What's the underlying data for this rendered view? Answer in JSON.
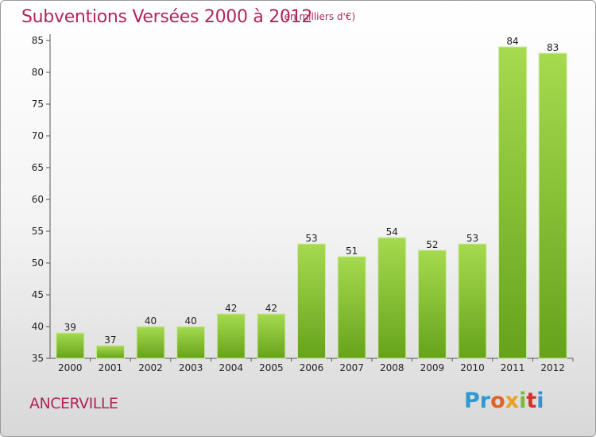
{
  "header": {
    "title": "Subventions Versées 2000 à 2012",
    "subtitle": "(en milliers d'€)"
  },
  "footer": {
    "commune": "ANCERVILLE",
    "logo_text": "Proxiti",
    "logo_letters": [
      "Pr",
      "o",
      "x",
      "i",
      "t",
      "i"
    ]
  },
  "chart_data": {
    "type": "bar",
    "title": "Subventions Versées 2000 à 2012",
    "subtitle": "(en milliers d'€)",
    "xlabel": "",
    "ylabel": "",
    "categories": [
      "2000",
      "2001",
      "2002",
      "2003",
      "2004",
      "2005",
      "2006",
      "2007",
      "2008",
      "2009",
      "2010",
      "2011",
      "2012"
    ],
    "values": [
      39,
      37,
      40,
      40,
      42,
      42,
      53,
      51,
      54,
      52,
      53,
      84,
      83
    ],
    "ylim": [
      35,
      85
    ],
    "yticks": [
      35,
      40,
      45,
      50,
      55,
      60,
      65,
      70,
      75,
      80,
      85
    ],
    "grid": false,
    "legend": "none",
    "bar_color": "#7cb829",
    "bar_color_light": "#a2d84c",
    "title_color": "#b3245c"
  }
}
